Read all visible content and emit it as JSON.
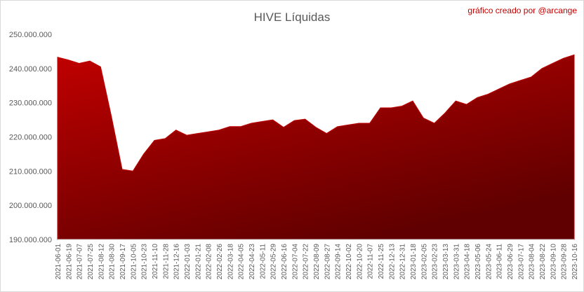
{
  "chart_data": {
    "type": "area",
    "title": "HIVE Líquidas",
    "annotation": "gráfico creado por @arcange",
    "categories": [
      "2021-06-01",
      "2021-06-19",
      "2021-07-07",
      "2021-07-25",
      "2021-08-12",
      "2021-08-30",
      "2021-09-17",
      "2021-10-05",
      "2021-10-23",
      "2021-11-10",
      "2021-11-28",
      "2021-12-16",
      "2022-01-03",
      "2022-01-21",
      "2022-02-08",
      "2022-02-26",
      "2022-03-18",
      "2022-04-05",
      "2022-04-23",
      "2022-05-11",
      "2022-05-29",
      "2022-06-16",
      "2022-07-04",
      "2022-07-22",
      "2022-08-09",
      "2022-08-27",
      "2022-09-14",
      "2022-10-02",
      "2022-10-20",
      "2022-11-07",
      "2022-11-25",
      "2022-12-13",
      "2022-12-31",
      "2023-01-18",
      "2023-02-05",
      "2023-02-23",
      "2023-03-13",
      "2023-03-31",
      "2023-04-18",
      "2023-05-06",
      "2023-05-24",
      "2023-06-11",
      "2023-06-29",
      "2023-07-17",
      "2023-08-04",
      "2023-08-22",
      "2023-09-10",
      "2023-09-28",
      "2023-10-16"
    ],
    "values": [
      243300000,
      242500000,
      241500000,
      242200000,
      240500000,
      226000000,
      210500000,
      210000000,
      215000000,
      219000000,
      219500000,
      222000000,
      220500000,
      221000000,
      221500000,
      222000000,
      223000000,
      223000000,
      224000000,
      224500000,
      225000000,
      222800000,
      224800000,
      225200000,
      222800000,
      221000000,
      223000000,
      223500000,
      224000000,
      224000000,
      228500000,
      228500000,
      229000000,
      230500000,
      225500000,
      224000000,
      227000000,
      230500000,
      229500000,
      231500000,
      232500000,
      234000000,
      235500000,
      236500000,
      237500000,
      240000000,
      241500000,
      243000000,
      244000000
    ],
    "color": "#c00000",
    "ylim": [
      190000000,
      250000000
    ],
    "yticks": [
      {
        "value": 190000000,
        "label": "190.000.000"
      },
      {
        "value": 200000000,
        "label": "200.000.000"
      },
      {
        "value": 210000000,
        "label": "210.000.000"
      },
      {
        "value": 220000000,
        "label": "220.000.000"
      },
      {
        "value": 230000000,
        "label": "230.000.000"
      },
      {
        "value": 240000000,
        "label": "240.000.000"
      },
      {
        "value": 250000000,
        "label": "250.000.000"
      }
    ],
    "grid": false
  }
}
